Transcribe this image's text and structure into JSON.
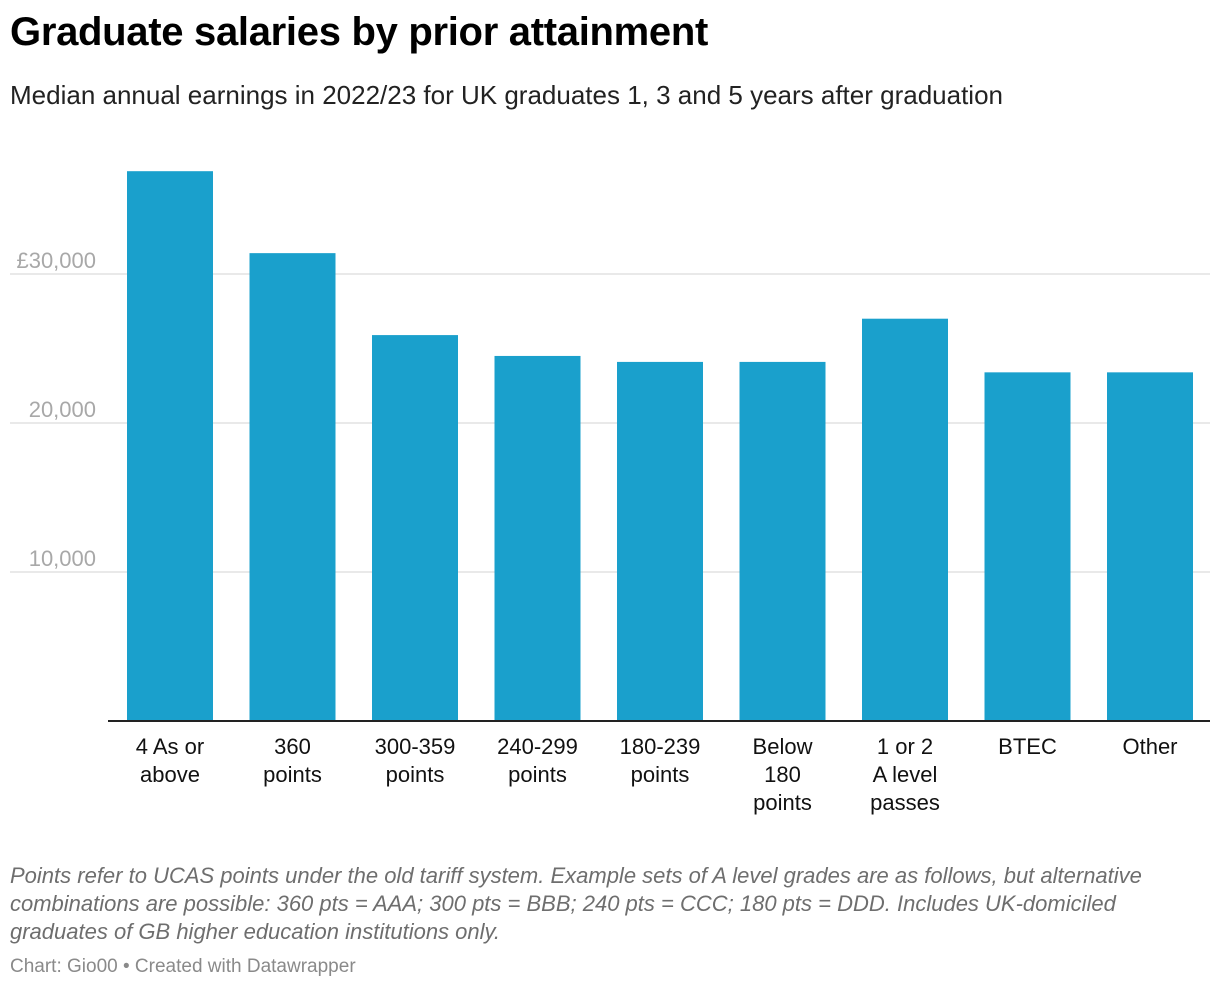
{
  "header": {
    "title": "Graduate salaries by prior attainment",
    "subtitle": "Median annual earnings in 2022/23 for UK graduates 1, 3 and 5 years after graduation"
  },
  "chart_data": {
    "type": "bar",
    "title": "Graduate salaries by prior attainment",
    "subtitle": "Median annual earnings in 2022/23 for UK graduates 1, 3 and 5 years after graduation",
    "xlabel": "",
    "ylabel": "",
    "ylim": [
      0,
      40000
    ],
    "grid": true,
    "yticks": [
      {
        "value": 10000,
        "label": "10,000"
      },
      {
        "value": 20000,
        "label": "20,000"
      },
      {
        "value": 30000,
        "label": "£30,000"
      }
    ],
    "categories": [
      [
        "4 As or",
        "above"
      ],
      [
        "360",
        "points"
      ],
      [
        "300-359",
        "points"
      ],
      [
        "240-299",
        "points"
      ],
      [
        "180-239",
        "points"
      ],
      [
        "Below",
        "180",
        "points"
      ],
      [
        "1 or 2",
        "A level",
        "passes"
      ],
      [
        "BTEC"
      ],
      [
        "Other"
      ]
    ],
    "values": [
      36900,
      31400,
      25900,
      24500,
      24100,
      24100,
      27000,
      23400,
      23400
    ],
    "bar_color": "#1aa0cc",
    "grid_color": "#e2e2e2",
    "baseline_color": "#222222"
  },
  "footer": {
    "notes": "Points refer to UCAS points under the old tariff system. Example sets of A level grades are as follows, but alternative combinations are possible: 360 pts = AAA; 300 pts = BBB; 240 pts = CCC; 180 pts = DDD. Includes UK-domiciled graduates of GB higher education institutions only.",
    "byline": "Chart: Gio00 • Created with Datawrapper"
  }
}
